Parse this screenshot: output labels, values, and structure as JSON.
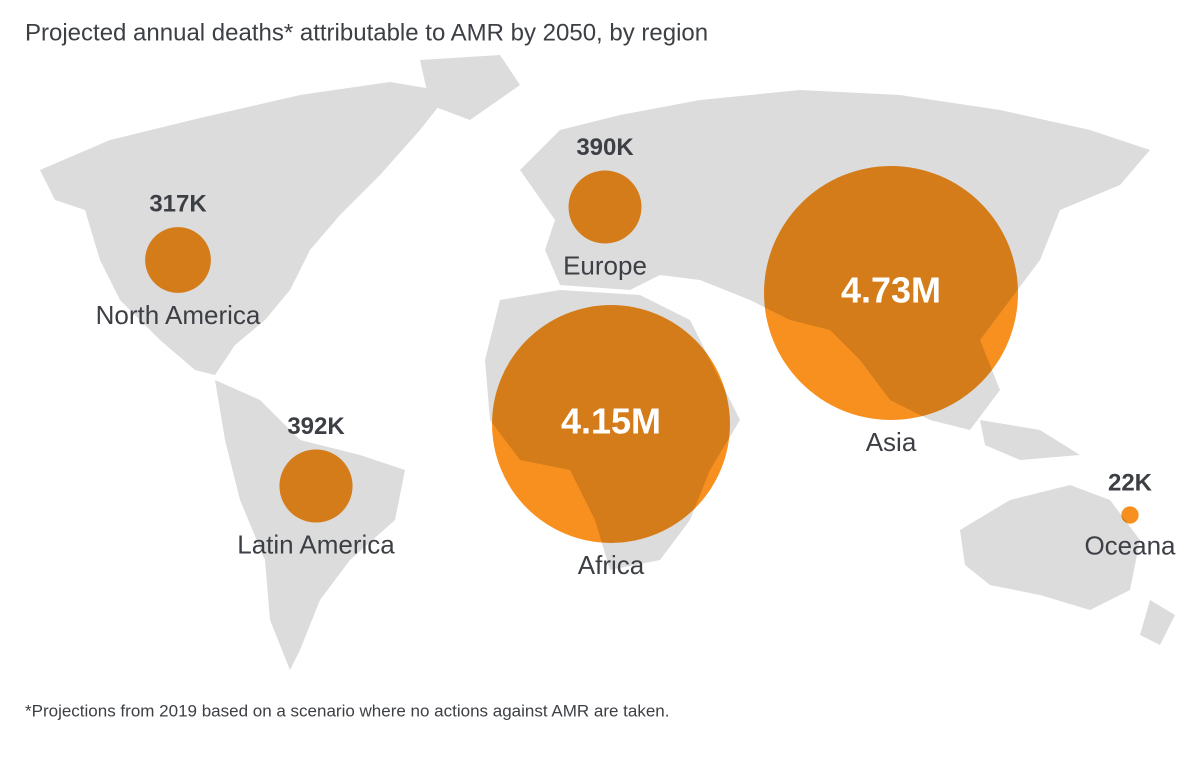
{
  "title": "Projected annual deaths* attributable to AMR by 2050, by region",
  "footnote": "*Projections from 2019 based on a scenario where no actions against AMR are taken.",
  "color": "#f7901e",
  "regions": [
    {
      "name": "North America",
      "value": 317000,
      "value_label": "317K"
    },
    {
      "name": "Europe",
      "value": 390000,
      "value_label": "390K"
    },
    {
      "name": "Latin America",
      "value": 392000,
      "value_label": "392K"
    },
    {
      "name": "Africa",
      "value": 4150000,
      "value_label": "4.15M"
    },
    {
      "name": "Asia",
      "value": 4730000,
      "value_label": "4.73M"
    },
    {
      "name": "Oceana",
      "value": 22000,
      "value_label": "22K"
    }
  ]
}
